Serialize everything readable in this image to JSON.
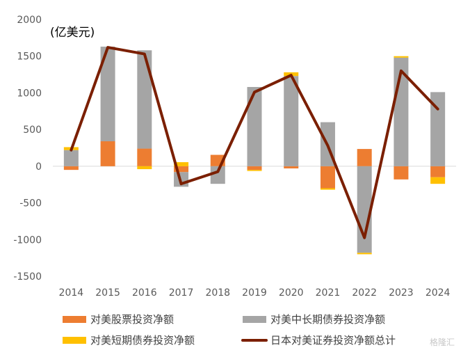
{
  "chart_data": {
    "type": "bar",
    "stacked": true,
    "unit_label": "(亿美元)",
    "categories": [
      "2014",
      "2015",
      "2016",
      "2017",
      "2018",
      "2019",
      "2020",
      "2021",
      "2022",
      "2023",
      "2024"
    ],
    "ylim": [
      -1500,
      2000
    ],
    "yticks": [
      2000,
      1500,
      1000,
      500,
      0,
      -500,
      -1000,
      -1500
    ],
    "grid": false,
    "legend_position": "bottom",
    "series": [
      {
        "name": "对美股票投资净额",
        "type": "bar",
        "color": "#ED7D31",
        "values": [
          -50,
          340,
          240,
          -80,
          155,
          -50,
          -30,
          -300,
          235,
          -180,
          -150
        ]
      },
      {
        "name": "对美中长期债券投资净额",
        "type": "bar",
        "color": "#A5A5A5",
        "values": [
          220,
          1290,
          1340,
          -200,
          -240,
          1080,
          1230,
          600,
          -1180,
          1480,
          1010
        ]
      },
      {
        "name": "对美短期债券投资净额",
        "type": "bar",
        "color": "#FFC000",
        "values": [
          40,
          0,
          -40,
          55,
          0,
          -15,
          50,
          -20,
          -20,
          20,
          -90
        ]
      },
      {
        "name": "日本对美证券投资净额总计",
        "type": "line",
        "color": "#7B1F00",
        "values": [
          220,
          1620,
          1530,
          -240,
          -75,
          1010,
          1240,
          280,
          -975,
          1300,
          780
        ]
      }
    ]
  },
  "watermark": "格隆汇"
}
